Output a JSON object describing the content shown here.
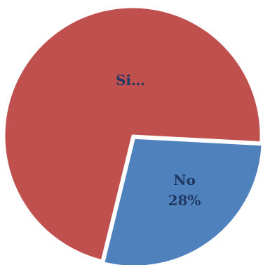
{
  "chart_data": {
    "type": "pie",
    "title": "",
    "slices": [
      {
        "label": "Si",
        "display_label": "Si…",
        "value": 72,
        "percent_text": "",
        "color": "#c0504d"
      },
      {
        "label": "No",
        "display_label": "No",
        "value": 28,
        "percent_text": "28%",
        "color": "#4f81bd"
      }
    ],
    "legend": "none",
    "slice_border_color": "#ffffff"
  }
}
